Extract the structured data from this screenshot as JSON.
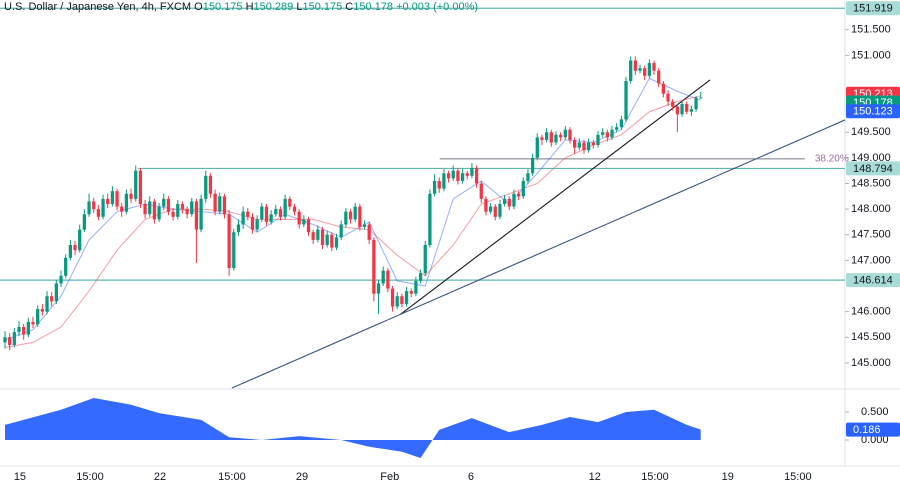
{
  "chart_data": {
    "type": "candlestick",
    "header": {
      "title": "U.S. Dollar / Japanese Yen, 4h, FXCM",
      "items": [
        {
          "key": "O",
          "value": "150.175"
        },
        {
          "key": "H",
          "value": "150.289"
        },
        {
          "key": "L",
          "value": "150.175"
        },
        {
          "key": "C",
          "value": "150.178"
        }
      ],
      "change": "+0.003 (+0.00%)"
    },
    "up_color": "#089981",
    "down_color": "#f23645",
    "xlim": [
      -1.07,
      179.9
    ],
    "xticks": [
      {
        "value": 3.2,
        "label": "15"
      },
      {
        "value": 18.2,
        "label": "15:00"
      },
      {
        "value": 33.2,
        "label": "22"
      },
      {
        "value": 48.6,
        "label": "15:00"
      },
      {
        "value": 63.6,
        "label": "29"
      },
      {
        "value": 82.4,
        "label": "Feb"
      },
      {
        "value": 99.8,
        "label": "6"
      },
      {
        "value": 126.3,
        "label": "12"
      },
      {
        "value": 139.2,
        "label": "15:00"
      },
      {
        "value": 154.8,
        "label": "19"
      },
      {
        "value": 169.8,
        "label": "15:00"
      }
    ],
    "ylim": [
      144.51,
      152.08
    ],
    "yticks": [
      {
        "value": 151.5,
        "label": "151.500"
      },
      {
        "value": 151,
        "label": "151.000"
      },
      {
        "value": 149.5,
        "label": "149.500"
      },
      {
        "value": 149,
        "label": "149.000"
      },
      {
        "value": 148.5,
        "label": "148.500"
      },
      {
        "value": 148,
        "label": "148.000"
      },
      {
        "value": 147.5,
        "label": "147.500"
      },
      {
        "value": 147,
        "label": "147.000"
      },
      {
        "value": 146,
        "label": "146.000"
      },
      {
        "value": 145.5,
        "label": "145.500"
      },
      {
        "value": 145,
        "label": "145.000"
      }
    ],
    "ohlc": [
      [
        145.4,
        145.62,
        145.28,
        145.5
      ],
      [
        145.5,
        145.58,
        145.25,
        145.35
      ],
      [
        145.35,
        145.68,
        145.3,
        145.6
      ],
      [
        145.6,
        145.82,
        145.52,
        145.7
      ],
      [
        145.7,
        145.76,
        145.45,
        145.55
      ],
      [
        145.55,
        145.88,
        145.5,
        145.8
      ],
      [
        145.8,
        145.9,
        145.68,
        145.75
      ],
      [
        145.75,
        146.12,
        145.7,
        146.05
      ],
      [
        146.05,
        146.15,
        145.92,
        146.0
      ],
      [
        146.0,
        146.4,
        145.95,
        146.3
      ],
      [
        146.3,
        146.38,
        146.1,
        146.2
      ],
      [
        146.2,
        146.62,
        146.15,
        146.55
      ],
      [
        146.55,
        146.8,
        146.48,
        146.7
      ],
      [
        146.7,
        147.12,
        146.65,
        147.05
      ],
      [
        147.05,
        147.4,
        147.0,
        147.3
      ],
      [
        147.3,
        147.38,
        147.1,
        147.2
      ],
      [
        147.2,
        147.7,
        147.15,
        147.6
      ],
      [
        147.6,
        148.0,
        147.55,
        147.9
      ],
      [
        147.9,
        148.3,
        147.85,
        148.15
      ],
      [
        148.15,
        148.22,
        147.92,
        148.0
      ],
      [
        148.0,
        148.08,
        147.78,
        147.85
      ],
      [
        147.85,
        148.28,
        147.8,
        148.2
      ],
      [
        148.2,
        148.3,
        148.02,
        148.1
      ],
      [
        148.1,
        148.45,
        148.05,
        148.35
      ],
      [
        148.35,
        148.4,
        147.98,
        148.05
      ],
      [
        148.05,
        148.12,
        147.85,
        147.95
      ],
      [
        147.95,
        148.38,
        147.9,
        148.3
      ],
      [
        148.3,
        148.4,
        148.12,
        148.2
      ],
      [
        148.2,
        148.85,
        148.15,
        148.75
      ],
      [
        148.75,
        148.8,
        148.02,
        148.1
      ],
      [
        148.1,
        148.18,
        147.82,
        147.9
      ],
      [
        147.9,
        148.25,
        147.85,
        148.15
      ],
      [
        148.15,
        148.2,
        147.72,
        147.8
      ],
      [
        147.8,
        148.12,
        147.75,
        148.05
      ],
      [
        148.05,
        148.3,
        147.98,
        148.2
      ],
      [
        148.2,
        148.25,
        147.88,
        147.95
      ],
      [
        147.95,
        148.02,
        147.78,
        147.85
      ],
      [
        147.85,
        148.18,
        147.8,
        148.1
      ],
      [
        148.1,
        148.15,
        147.92,
        148.0
      ],
      [
        148.0,
        148.05,
        147.82,
        147.9
      ],
      [
        147.9,
        148.22,
        147.85,
        148.15
      ],
      [
        148.15,
        148.2,
        146.95,
        147.6
      ],
      [
        147.6,
        148.28,
        147.55,
        148.2
      ],
      [
        148.2,
        148.75,
        148.12,
        148.65
      ],
      [
        148.65,
        148.7,
        148.22,
        148.3
      ],
      [
        148.3,
        148.38,
        147.88,
        147.95
      ],
      [
        147.95,
        148.32,
        147.9,
        148.25
      ],
      [
        148.25,
        148.3,
        147.82,
        147.9
      ],
      [
        147.9,
        147.98,
        146.7,
        146.85
      ],
      [
        146.85,
        147.62,
        146.8,
        147.55
      ],
      [
        147.55,
        147.8,
        147.48,
        147.7
      ],
      [
        147.7,
        148.05,
        147.62,
        147.95
      ],
      [
        147.95,
        148.02,
        147.78,
        147.85
      ],
      [
        147.85,
        147.92,
        147.52,
        147.6
      ],
      [
        147.6,
        147.88,
        147.55,
        147.8
      ],
      [
        147.8,
        148.12,
        147.75,
        148.05
      ],
      [
        148.05,
        148.1,
        147.68,
        147.75
      ],
      [
        147.75,
        147.98,
        147.7,
        147.9
      ],
      [
        147.9,
        148.08,
        147.85,
        148.0
      ],
      [
        148.0,
        148.05,
        147.78,
        147.85
      ],
      [
        147.85,
        148.28,
        147.8,
        148.2
      ],
      [
        148.2,
        148.25,
        147.98,
        148.05
      ],
      [
        148.05,
        148.1,
        147.88,
        147.95
      ],
      [
        147.95,
        148.0,
        147.62,
        147.7
      ],
      [
        147.7,
        147.88,
        147.65,
        147.8
      ],
      [
        147.8,
        147.85,
        147.48,
        147.55
      ],
      [
        147.55,
        147.6,
        147.32,
        147.4
      ],
      [
        147.4,
        147.68,
        147.35,
        147.6
      ],
      [
        147.6,
        147.65,
        147.22,
        147.3
      ],
      [
        147.3,
        147.58,
        147.25,
        147.5
      ],
      [
        147.5,
        147.55,
        147.18,
        147.25
      ],
      [
        147.25,
        147.52,
        147.2,
        147.45
      ],
      [
        147.45,
        147.78,
        147.4,
        147.7
      ],
      [
        147.7,
        148.02,
        147.65,
        147.95
      ],
      [
        147.95,
        148.0,
        147.72,
        147.8
      ],
      [
        147.8,
        148.12,
        147.75,
        148.05
      ],
      [
        148.05,
        148.1,
        147.58,
        147.65
      ],
      [
        147.65,
        147.78,
        147.6,
        147.7
      ],
      [
        147.7,
        147.75,
        147.32,
        147.4
      ],
      [
        147.4,
        147.45,
        146.2,
        146.35
      ],
      [
        146.35,
        146.62,
        145.95,
        146.55
      ],
      [
        146.55,
        146.88,
        146.5,
        146.8
      ],
      [
        146.8,
        146.85,
        146.38,
        146.45
      ],
      [
        146.45,
        146.5,
        146.0,
        146.1
      ],
      [
        146.1,
        146.38,
        146.05,
        146.3
      ],
      [
        146.3,
        146.35,
        146.08,
        146.15
      ],
      [
        146.15,
        146.48,
        146.1,
        146.4
      ],
      [
        146.4,
        146.45,
        146.28,
        146.35
      ],
      [
        146.35,
        146.68,
        146.3,
        146.6
      ],
      [
        146.6,
        146.82,
        146.55,
        146.75
      ],
      [
        146.75,
        147.38,
        146.7,
        147.3
      ],
      [
        147.3,
        148.38,
        147.25,
        148.3
      ],
      [
        148.3,
        148.68,
        148.25,
        148.55
      ],
      [
        148.55,
        148.62,
        148.32,
        148.4
      ],
      [
        148.4,
        148.78,
        148.35,
        148.7
      ],
      [
        148.7,
        148.75,
        148.52,
        148.6
      ],
      [
        148.6,
        148.85,
        148.55,
        148.75
      ],
      [
        148.75,
        148.8,
        148.48,
        148.55
      ],
      [
        148.55,
        148.78,
        148.5,
        148.7
      ],
      [
        148.7,
        148.75,
        148.58,
        148.65
      ],
      [
        148.65,
        148.9,
        148.6,
        148.8
      ],
      [
        148.8,
        148.85,
        148.42,
        148.5
      ],
      [
        148.5,
        148.55,
        148.12,
        148.2
      ],
      [
        148.2,
        148.25,
        147.88,
        147.95
      ],
      [
        147.95,
        148.12,
        147.9,
        148.05
      ],
      [
        148.05,
        148.1,
        147.78,
        147.85
      ],
      [
        147.85,
        148.18,
        147.8,
        148.1
      ],
      [
        148.1,
        148.28,
        148.05,
        148.2
      ],
      [
        148.2,
        148.25,
        147.98,
        148.05
      ],
      [
        148.05,
        148.38,
        148.0,
        148.3
      ],
      [
        148.3,
        148.35,
        148.18,
        148.25
      ],
      [
        148.25,
        148.62,
        148.2,
        148.55
      ],
      [
        148.55,
        148.78,
        148.5,
        148.7
      ],
      [
        148.7,
        149.08,
        148.65,
        149.0
      ],
      [
        149.0,
        149.48,
        148.95,
        149.4
      ],
      [
        149.4,
        149.45,
        149.25,
        149.35
      ],
      [
        149.35,
        149.58,
        149.3,
        149.5
      ],
      [
        149.5,
        149.55,
        149.22,
        149.3
      ],
      [
        149.3,
        149.52,
        149.25,
        149.45
      ],
      [
        149.45,
        149.5,
        149.32,
        149.4
      ],
      [
        149.4,
        149.62,
        149.35,
        149.55
      ],
      [
        149.55,
        149.6,
        149.28,
        149.35
      ],
      [
        149.35,
        149.4,
        149.08,
        149.2
      ],
      [
        149.2,
        149.38,
        149.15,
        149.3
      ],
      [
        149.3,
        149.35,
        149.08,
        149.15
      ],
      [
        149.15,
        149.38,
        149.1,
        149.3
      ],
      [
        149.3,
        149.35,
        149.18,
        149.25
      ],
      [
        149.25,
        149.52,
        149.2,
        149.45
      ],
      [
        149.45,
        149.58,
        149.4,
        149.5
      ],
      [
        149.5,
        149.55,
        149.32,
        149.4
      ],
      [
        149.4,
        149.62,
        149.35,
        149.55
      ],
      [
        149.55,
        149.68,
        149.5,
        149.6
      ],
      [
        149.6,
        149.82,
        149.55,
        149.75
      ],
      [
        149.75,
        150.58,
        149.7,
        150.5
      ],
      [
        150.5,
        150.98,
        150.45,
        150.9
      ],
      [
        150.9,
        150.98,
        150.62,
        150.7
      ],
      [
        150.7,
        150.82,
        150.65,
        150.75
      ],
      [
        150.75,
        150.8,
        150.52,
        150.6
      ],
      [
        150.6,
        150.92,
        150.55,
        150.85
      ],
      [
        150.85,
        150.9,
        150.62,
        150.7
      ],
      [
        150.7,
        150.75,
        150.38,
        150.45
      ],
      [
        150.45,
        150.5,
        150.18,
        150.25
      ],
      [
        150.25,
        150.32,
        150.02,
        150.1
      ],
      [
        150.1,
        150.15,
        149.92,
        150.0
      ],
      [
        150.0,
        150.05,
        149.5,
        149.85
      ],
      [
        149.85,
        150.12,
        149.8,
        150.05
      ],
      [
        150.05,
        150.1,
        149.85,
        149.9
      ],
      [
        149.9,
        150.02,
        149.82,
        149.95
      ],
      [
        149.95,
        150.2,
        149.9,
        150.175
      ],
      [
        150.175,
        150.289,
        150.175,
        150.178
      ]
    ],
    "series": [
      {
        "color": "#2962ff",
        "x": [
          0,
          6,
          12,
          18,
          24,
          30,
          36,
          42,
          48,
          54,
          60,
          66,
          72,
          78,
          84,
          90,
          96,
          102,
          108,
          114,
          120,
          126,
          132,
          138,
          144,
          149
        ],
        "values": [
          145.45,
          145.65,
          146.3,
          147.4,
          147.95,
          148.1,
          148.0,
          147.95,
          147.9,
          147.55,
          147.9,
          147.7,
          147.45,
          147.75,
          146.6,
          146.5,
          148.2,
          148.55,
          148.1,
          148.7,
          149.35,
          149.3,
          149.55,
          150.55,
          150.3,
          150.123
        ]
      },
      {
        "color": "#f23645",
        "x": [
          0,
          6,
          12,
          18,
          24,
          30,
          36,
          42,
          48,
          54,
          60,
          66,
          72,
          78,
          84,
          90,
          96,
          102,
          108,
          114,
          120,
          126,
          132,
          138,
          144,
          149
        ],
        "values": [
          145.3,
          145.4,
          145.7,
          146.4,
          147.2,
          147.8,
          148.0,
          148.0,
          147.95,
          147.8,
          147.8,
          147.8,
          147.65,
          147.6,
          147.1,
          146.7,
          147.3,
          148.1,
          148.3,
          148.5,
          149.0,
          149.25,
          149.45,
          149.9,
          150.1,
          150.213
        ]
      }
    ],
    "levels": [
      {
        "value": 151.919
      },
      {
        "value": 148.794,
        "from": 28.5
      },
      {
        "value": 146.614
      }
    ],
    "level_color": "#5fb8b0",
    "fib": {
      "label": "38.20%",
      "value": 148.98,
      "x": [
        93.1,
        171.3
      ]
    },
    "trendlines": [
      {
        "x": [
          84.6,
          151
        ],
        "values": [
          145.94,
          150.52
        ],
        "color": "#131722"
      },
      {
        "x": [
          48.6,
          179.9
        ],
        "values": [
          144.51,
          149.74
        ],
        "color": "#3a5488"
      }
    ],
    "oscillator": {
      "color": "#2962ff",
      "y2lim": [
        -0.446,
        0.893
      ],
      "y2ticks": [
        {
          "value": 0.5,
          "label": "0.500"
        },
        {
          "value": 0,
          "label": "0.000"
        }
      ],
      "x": [
        0,
        12,
        19,
        27,
        33,
        42,
        48,
        55,
        63,
        72,
        78,
        85,
        89,
        93,
        100,
        108,
        115,
        121,
        127,
        133,
        139,
        146,
        149
      ],
      "values": [
        0.27,
        0.54,
        0.75,
        0.63,
        0.48,
        0.36,
        0.05,
        0,
        0.07,
        0,
        -0.12,
        -0.21,
        -0.32,
        0.18,
        0.39,
        0.14,
        0.27,
        0.41,
        0.32,
        0.5,
        0.54,
        0.27,
        0.186
      ]
    }
  }
}
